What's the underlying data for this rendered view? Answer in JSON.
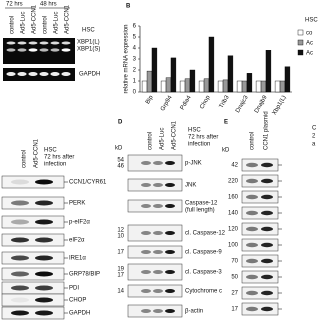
{
  "panel_a": {
    "time_labels": [
      "72 hrs",
      "48 hrs"
    ],
    "lanes": [
      "control",
      "Ad5-Luc",
      "Ad5-CCN1",
      "control",
      "Ad5-Luc",
      "Ad5-CCN1"
    ],
    "cell": "HSC",
    "bands": [
      "XBP1(L)",
      "XBP1(S)",
      "GAPDH"
    ]
  },
  "chart_data": {
    "type": "bar",
    "label": "B",
    "ylabel": "relative mRNA expression",
    "categories": [
      "Bip",
      "Grp94",
      "Pdia4",
      "Chop",
      "Trib3",
      "Dnajc3",
      "Dnajb9",
      "Xbp1(L)"
    ],
    "series": [
      {
        "name": "co",
        "color": "#ffffff",
        "values": [
          1,
          1,
          1,
          1,
          1,
          1,
          1,
          1
        ]
      },
      {
        "name": "Ac",
        "color": "#999999",
        "values": [
          1.9,
          1.3,
          1.2,
          1.2,
          1.1,
          1,
          1,
          1
        ]
      },
      {
        "name": "Ac",
        "color": "#111111",
        "values": [
          4,
          3.1,
          2,
          5,
          3.3,
          1.7,
          3.8,
          2.3
        ]
      }
    ],
    "ylim": [
      0,
      6
    ],
    "yticks": [
      0,
      1,
      2,
      3,
      4,
      5,
      6
    ]
  },
  "panel_c": {
    "lanes": [
      "control",
      "Ad5-CCN1"
    ],
    "info": [
      "HSC",
      "72 hrs after",
      "infection"
    ],
    "rows": [
      "CCN1/CYR61",
      "PERK",
      "p-eIF2α",
      "eIF2α",
      "IRE1α",
      "GRP78/BIP",
      "PDI",
      "CHOP",
      "GAPDH"
    ]
  },
  "panel_d": {
    "label": "D",
    "kd": "kD",
    "lanes": [
      "control",
      "Ad5-Luc",
      "Ad5-CCN1"
    ],
    "info": [
      "HSC",
      "72 hrs after",
      "infection"
    ],
    "rows": [
      {
        "markers": [
          "54",
          "46"
        ],
        "names": [
          "p-JNK"
        ]
      },
      {
        "markers": [],
        "names": [
          "JNK"
        ]
      },
      {
        "markers": [],
        "names": [
          "Caspase-12",
          "(full length)"
        ]
      },
      {
        "markers": [
          "12",
          "10"
        ],
        "names": [
          "cl. Caspase-12"
        ]
      },
      {
        "markers": [
          "17"
        ],
        "names": [
          "cl. Caspase-9"
        ]
      },
      {
        "markers": [
          "19",
          "17"
        ],
        "names": [
          "cl. Caspase-3"
        ]
      },
      {
        "markers": [
          "14"
        ],
        "names": [
          "Cytochrome c"
        ]
      },
      {
        "markers": [],
        "names": [
          "β-actin"
        ]
      }
    ]
  },
  "panel_e": {
    "label": "E",
    "kd": "kD",
    "lanes": [
      "control",
      "CCN1 plasmid"
    ],
    "markers": [
      "42",
      "220",
      "160",
      "140",
      "120",
      "100",
      "70",
      "50",
      "27",
      "17"
    ],
    "cut": [
      "C",
      "2",
      "a"
    ]
  }
}
